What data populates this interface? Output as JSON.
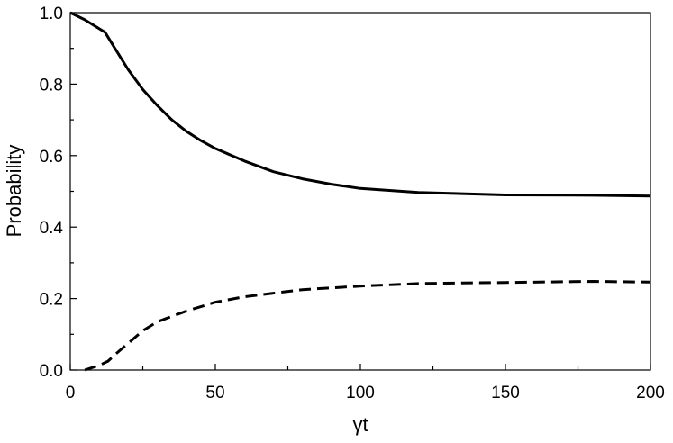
{
  "chart_data": {
    "type": "line",
    "title": "",
    "xlabel": "γt",
    "ylabel": "Probability",
    "xlim": [
      0,
      200
    ],
    "ylim": [
      0,
      1.0
    ],
    "x_ticks": [
      0,
      50,
      100,
      150,
      200
    ],
    "x_tick_labels": [
      "0",
      "50",
      "100",
      "150",
      "200"
    ],
    "y_ticks": [
      0.0,
      0.2,
      0.4,
      0.6,
      0.8,
      1.0
    ],
    "y_tick_labels": [
      "0.0",
      "0.2",
      "0.4",
      "0.6",
      "0.8",
      "1.0"
    ],
    "grid": false,
    "legend": "none",
    "series": [
      {
        "style": "solid",
        "color": "#000000",
        "x": [
          0,
          5,
          10,
          12,
          15,
          20,
          25,
          30,
          35,
          40,
          45,
          50,
          60,
          70,
          80,
          90,
          100,
          120,
          150,
          180,
          200
        ],
        "y": [
          1.0,
          0.98,
          0.955,
          0.945,
          0.905,
          0.84,
          0.785,
          0.74,
          0.7,
          0.668,
          0.642,
          0.62,
          0.585,
          0.555,
          0.535,
          0.52,
          0.508,
          0.497,
          0.49,
          0.489,
          0.487
        ]
      },
      {
        "style": "dashed",
        "color": "#000000",
        "x": [
          5,
          8,
          10,
          13,
          15,
          20,
          25,
          30,
          35,
          40,
          50,
          60,
          70,
          80,
          90,
          100,
          120,
          150,
          180,
          200
        ],
        "y": [
          0.0,
          0.008,
          0.013,
          0.025,
          0.04,
          0.075,
          0.11,
          0.135,
          0.15,
          0.165,
          0.19,
          0.205,
          0.215,
          0.225,
          0.23,
          0.235,
          0.242,
          0.245,
          0.248,
          0.246
        ]
      }
    ]
  }
}
